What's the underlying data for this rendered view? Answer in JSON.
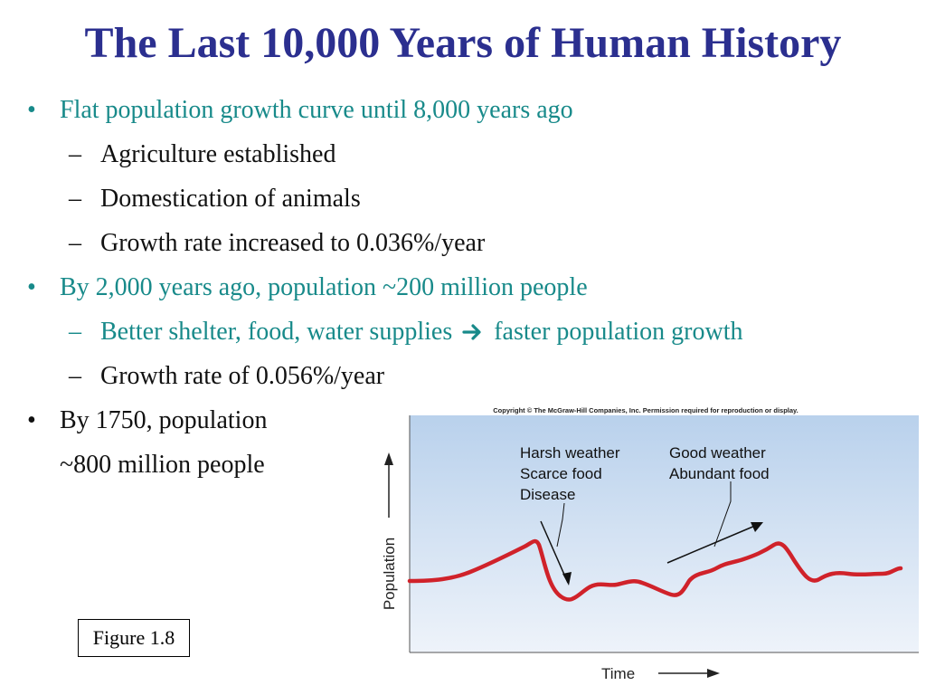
{
  "slide": {
    "title": "The Last 10,000 Years of Human History",
    "bullets": [
      {
        "text": "Flat population growth curve until 8,000 years ago",
        "level": 1,
        "color": "#188a8a"
      },
      {
        "text": "Agriculture established",
        "level": 2,
        "color": "#111111"
      },
      {
        "text": "Domestication of animals",
        "level": 2,
        "color": "#111111"
      },
      {
        "text": "Growth rate increased to 0.036%/year",
        "level": 2,
        "color": "#111111"
      },
      {
        "text": "By 2,000 years ago, population ~200 million people",
        "level": 1,
        "color": "#188a8a"
      },
      {
        "text": "Better shelter, food, water supplies",
        "arrow_text": "faster population growth",
        "level": 2,
        "color": "#188a8a"
      },
      {
        "text": "Growth rate of 0.056%/year",
        "level": 2,
        "color": "#111111"
      },
      {
        "text": "By 1750, population",
        "level": 1,
        "color": "#111111"
      },
      {
        "text": "~800 million people",
        "level": 1,
        "color": "#111111"
      }
    ],
    "bullet_symbol": "•",
    "sub_bullet_symbol": "–",
    "figure_label": "Figure 1.8"
  },
  "figure": {
    "copyright": "Copyright © The McGraw-Hill Companies, Inc. Permission required for reproduction or display.",
    "ylabel": "Population",
    "xlabel": "Time",
    "annotation_left": [
      "Harsh weather",
      "Scarce food",
      "Disease"
    ],
    "annotation_right": [
      "Good weather",
      "Abundant food"
    ],
    "curve_color": "#d0222a",
    "background_top": "#b9d1ec",
    "background_bottom": "#eef3fa"
  }
}
